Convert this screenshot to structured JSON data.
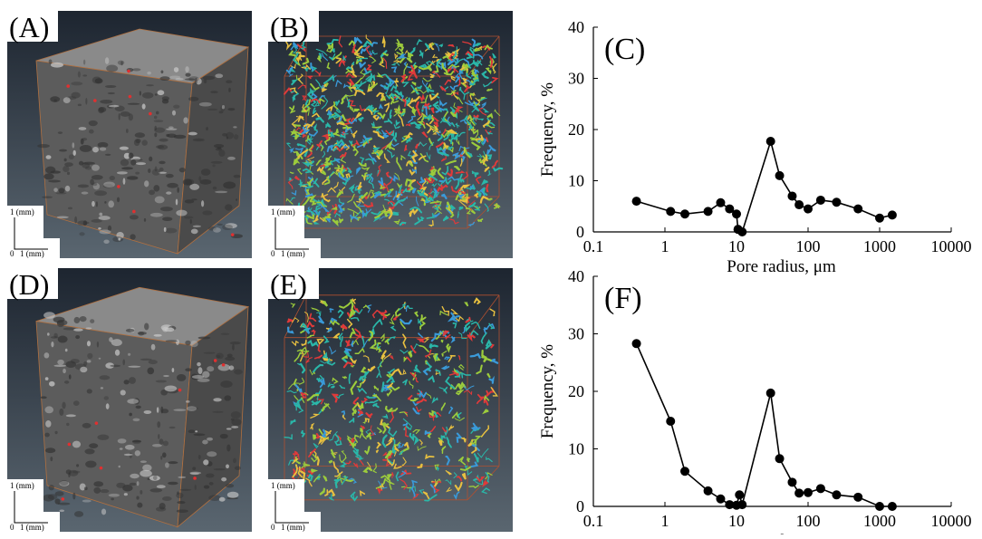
{
  "image_panels": [
    {
      "label": "(A)",
      "scale_y": "1 (mm)",
      "scale_x": "1 (mm)",
      "origin": "0"
    },
    {
      "label": "(B)",
      "scale_y": "1 (mm)",
      "scale_x": "1 (mm)",
      "origin": "0"
    },
    {
      "label": "(D)",
      "scale_y": "1 (mm)",
      "scale_x": "1 (mm)",
      "origin": "0"
    },
    {
      "label": "(E)",
      "scale_y": "1 (mm)",
      "scale_x": "1 (mm)",
      "origin": "0"
    }
  ],
  "chart_data": [
    {
      "type": "line",
      "title": "(C)",
      "xlabel": "Pore radius, μm",
      "ylabel": "Frequency, %",
      "xscale": "log",
      "xlim": [
        0.1,
        10000
      ],
      "xticks": [
        0.1,
        1,
        10,
        100,
        1000,
        10000
      ],
      "ylim": [
        0,
        40
      ],
      "yticks": [
        0,
        10,
        20,
        30,
        40
      ],
      "color": "#000000",
      "x": [
        0.4,
        1.2,
        1.9,
        4,
        6,
        8,
        10,
        10.5,
        12,
        30,
        40,
        60,
        75,
        100,
        150,
        250,
        500,
        1000,
        1500
      ],
      "values": [
        6,
        4,
        3.5,
        4,
        5.7,
        4.5,
        3.5,
        0.5,
        0,
        17.7,
        11,
        7,
        5.3,
        4.5,
        6.2,
        5.8,
        4.5,
        2.7,
        3.3
      ]
    },
    {
      "type": "line",
      "title": "(F)",
      "xlabel": "Pore radius, μm",
      "ylabel": "Frequency, %",
      "xscale": "log",
      "xlim": [
        0.1,
        10000
      ],
      "xticks": [
        0.1,
        1,
        10,
        100,
        1000,
        10000
      ],
      "ylim": [
        0,
        40
      ],
      "yticks": [
        0,
        10,
        20,
        30,
        40
      ],
      "color": "#000000",
      "x": [
        0.4,
        1.2,
        1.9,
        4,
        6,
        8,
        10,
        11,
        12,
        30,
        40,
        60,
        75,
        100,
        150,
        250,
        500,
        1000,
        1500
      ],
      "values": [
        28.3,
        14.8,
        6.1,
        2.7,
        1.3,
        0.3,
        0.2,
        2,
        0.3,
        19.7,
        8.3,
        4.2,
        2.3,
        2.4,
        3.1,
        2,
        1.6,
        0,
        0
      ]
    }
  ]
}
